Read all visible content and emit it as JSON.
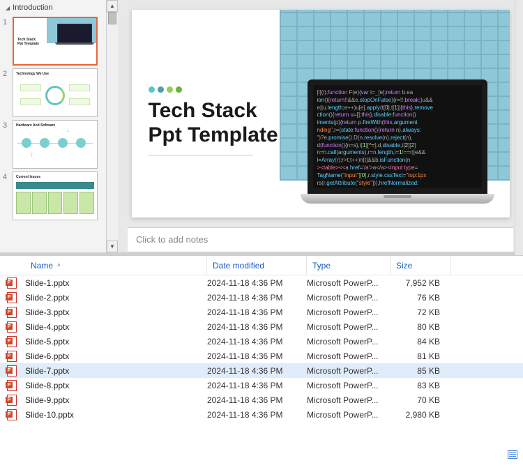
{
  "section": {
    "label": "Introduction"
  },
  "thumbs": [
    {
      "num": "1",
      "title": "Tech Stack\nPpt Template"
    },
    {
      "num": "2",
      "title": "Technology We Use"
    },
    {
      "num": "3",
      "title": "Hardware And Software"
    },
    {
      "num": "4",
      "title": "Current Issues"
    }
  ],
  "slide": {
    "title_line1": "Tech Stack",
    "title_line2": "Ppt Template",
    "dot_colors": [
      "#5cc6c6",
      "#4aa3a3",
      "#8dd05a",
      "#6ab33c"
    ]
  },
  "notes": {
    "placeholder": "Click to add notes"
  },
  "explorer": {
    "columns": {
      "name": "Name",
      "date": "Date modified",
      "type": "Type",
      "size": "Size"
    },
    "rows": [
      {
        "name": "Slide-1.pptx",
        "date": "2024-11-18 4:36 PM",
        "type": "Microsoft PowerP...",
        "size": "7,952 KB",
        "sel": false
      },
      {
        "name": "Slide-2.pptx",
        "date": "2024-11-18 4:36 PM",
        "type": "Microsoft PowerP...",
        "size": "76 KB",
        "sel": false
      },
      {
        "name": "Slide-3.pptx",
        "date": "2024-11-18 4:36 PM",
        "type": "Microsoft PowerP...",
        "size": "72 KB",
        "sel": false
      },
      {
        "name": "Slide-4.pptx",
        "date": "2024-11-18 4:36 PM",
        "type": "Microsoft PowerP...",
        "size": "80 KB",
        "sel": false
      },
      {
        "name": "Slide-5.pptx",
        "date": "2024-11-18 4:36 PM",
        "type": "Microsoft PowerP...",
        "size": "84 KB",
        "sel": false
      },
      {
        "name": "Slide-6.pptx",
        "date": "2024-11-18 4:36 PM",
        "type": "Microsoft PowerP...",
        "size": "81 KB",
        "sel": false
      },
      {
        "name": "Slide-7.pptx",
        "date": "2024-11-18 4:36 PM",
        "type": "Microsoft PowerP...",
        "size": "85 KB",
        "sel": true
      },
      {
        "name": "Slide-8.pptx",
        "date": "2024-11-18 4:36 PM",
        "type": "Microsoft PowerP...",
        "size": "83 KB",
        "sel": false
      },
      {
        "name": "Slide-9.pptx",
        "date": "2024-11-18 4:36 PM",
        "type": "Microsoft PowerP...",
        "size": "70 KB",
        "sel": false
      },
      {
        "name": "Slide-10.pptx",
        "date": "2024-11-18 4:36 PM",
        "type": "Microsoft PowerP...",
        "size": "2,980 KB",
        "sel": false
      }
    ]
  },
  "code_lines": [
    [
      [
        "pl",
        "[i](i);"
      ],
      [
        "kw",
        "function"
      ],
      [
        "pl",
        " F(e){"
      ],
      [
        "kw",
        "var"
      ],
      [
        "pl",
        " t=_[e];"
      ],
      [
        "kw",
        "return"
      ],
      [
        "pl",
        " b.ea"
      ]
    ],
    [
      [
        "fn",
        "ion"
      ],
      [
        "pl",
        "(){"
      ],
      [
        "kw",
        "return"
      ],
      [
        "pl",
        "!!&&e."
      ],
      [
        "fn",
        "stopOnFalse"
      ],
      [
        "pl",
        "){r=!!;"
      ],
      [
        "kw",
        "break"
      ],
      [
        "pl",
        ";}u&&"
      ]
    ],
    [
      [
        "pl",
        "e||u."
      ],
      [
        "fn",
        "length"
      ],
      [
        "pl",
        ";e++)u[e]."
      ],
      [
        "fn",
        "apply"
      ],
      [
        "pl",
        "(t["
      ],
      [
        "num",
        "0"
      ],
      [
        "pl",
        "],t["
      ],
      [
        "num",
        "1"
      ],
      [
        "pl",
        "])["
      ],
      [
        "kw",
        "this"
      ],
      [
        "pl",
        "},"
      ],
      [
        "fn",
        "remove"
      ]
    ],
    [
      [
        "fn",
        "ction"
      ],
      [
        "pl",
        "(){"
      ],
      [
        "kw",
        "return"
      ],
      [
        "pl",
        " u=[];"
      ],
      [
        "kw",
        "this"
      ],
      [
        "pl",
        "},"
      ],
      [
        "fn",
        "disable"
      ],
      [
        "pl",
        ":"
      ],
      [
        "kw",
        "function"
      ],
      [
        "pl",
        "()"
      ]
    ],
    [
      [
        "fn",
        "iments"
      ],
      [
        "pl",
        "(p){"
      ],
      [
        "kw",
        "return"
      ],
      [
        "pl",
        " p."
      ],
      [
        "fn",
        "fireWith"
      ],
      [
        "pl",
        "("
      ],
      [
        "kw",
        "this"
      ],
      [
        "pl",
        ","
      ],
      [
        "fn",
        "argument"
      ]
    ],
    [
      [
        "str",
        "nding"
      ],
      [
        "pl",
        "\",r={"
      ],
      [
        "fn",
        "state"
      ],
      [
        "pl",
        ":"
      ],
      [
        "kw",
        "function"
      ],
      [
        "pl",
        "(){"
      ],
      [
        "kw",
        "return"
      ],
      [
        "pl",
        " n},"
      ],
      [
        "fn",
        "always"
      ],
      [
        "pl",
        ":"
      ]
    ],
    [
      [
        "str",
        "\")"
      ],
      [
        "pl",
        "?e."
      ],
      [
        "fn",
        "promise"
      ],
      [
        "pl",
        "().D(n."
      ],
      [
        "fn",
        "resolve"
      ],
      [
        "pl",
        "(n),"
      ],
      [
        "fn",
        "reject"
      ],
      [
        "pl",
        "(n),"
      ]
    ],
    [
      [
        "pl",
        "d("
      ],
      [
        "kw",
        "function"
      ],
      [
        "pl",
        "(){n=s},t["
      ],
      [
        "num",
        "1"
      ],
      [
        "pl",
        "]["
      ],
      [
        "op",
        "^="
      ],
      [
        "pl",
        "].d,"
      ],
      [
        "fn",
        "disable"
      ],
      [
        "pl",
        ",t["
      ],
      [
        "num",
        "2"
      ],
      [
        "pl",
        "]["
      ],
      [
        "num",
        "2"
      ],
      [
        "pl",
        "]"
      ]
    ],
    [
      [
        "pl",
        "n=h."
      ],
      [
        "fn",
        "call"
      ],
      [
        "pl",
        "("
      ],
      [
        "fn",
        "arguments"
      ],
      [
        "pl",
        "),r=n."
      ],
      [
        "fn",
        "length"
      ],
      [
        "pl",
        ",i="
      ],
      [
        "num",
        "1"
      ],
      [
        "pl",
        "!==r||e&&"
      ]
    ],
    [
      [
        "pl",
        "l="
      ],
      [
        "fn",
        "Array"
      ],
      [
        "pl",
        "(r);r>t;t++)n[t]&&b."
      ],
      [
        "fn",
        "isFunction"
      ],
      [
        "pl",
        "(n"
      ]
    ],
    [
      [
        "red",
        ">"
      ],
      [
        "pink",
        "<table><"
      ],
      [
        "pl",
        "<"
      ],
      [
        "pink",
        "a"
      ],
      [
        "pl",
        " "
      ],
      [
        "fn",
        "href"
      ],
      [
        "pl",
        "='/"
      ],
      [
        "pink",
        "a"
      ],
      [
        "pl",
        "'>a</"
      ],
      [
        "pink",
        "a"
      ],
      [
        "pl",
        "><"
      ],
      [
        "pink",
        "input type"
      ],
      [
        "pl",
        "="
      ]
    ],
    [
      [
        "fn",
        "TagName"
      ],
      [
        "pl",
        "("
      ],
      [
        "str",
        "\"input\""
      ],
      [
        "pl",
        "]["
      ],
      [
        "num",
        "0"
      ],
      [
        "pl",
        "],r."
      ],
      [
        "fn",
        "style"
      ],
      [
        "pl",
        "."
      ],
      [
        "fn",
        "cssText"
      ],
      [
        "pl",
        "="
      ],
      [
        "str",
        "\"top:1px"
      ]
    ],
    [
      [
        "pl",
        "rs(r."
      ],
      [
        "fn",
        "getAttribute"
      ],
      [
        "pl",
        "("
      ],
      [
        "str",
        "\"style\""
      ],
      [
        "pl",
        "])),"
      ],
      [
        "fn",
        "hrefNormalized"
      ],
      [
        "pl",
        ":"
      ]
    ]
  ]
}
